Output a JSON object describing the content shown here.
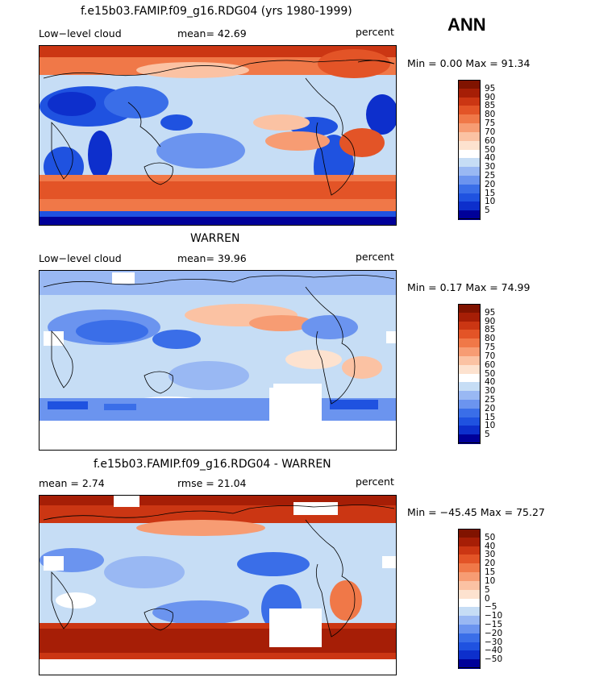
{
  "season": "ANN",
  "panels": [
    {
      "title": "f.e15b03.FAMIP.f09_g16.RDG04 (yrs 1980-1999)",
      "left_label": "Low−level cloud",
      "mean_text": "mean=  42.69",
      "units": "percent",
      "minmax_text": "Min =   0.00 Max =  91.34",
      "levels": [
        "95",
        "90",
        "85",
        "80",
        "75",
        "70",
        "60",
        "50",
        "40",
        "30",
        "25",
        "20",
        "15",
        "10",
        "5"
      ]
    },
    {
      "title": "WARREN",
      "left_label": "Low−level cloud",
      "mean_text": "mean=  39.96",
      "units": "percent",
      "minmax_text": "Min =   0.17 Max =  74.99",
      "levels": [
        "95",
        "90",
        "85",
        "80",
        "75",
        "70",
        "60",
        "50",
        "40",
        "30",
        "25",
        "20",
        "15",
        "10",
        "5"
      ]
    },
    {
      "title": "f.e15b03.FAMIP.f09_g16.RDG04 - WARREN",
      "left_label": "mean =    2.74",
      "mean_text": "rmse =  21.04",
      "units": "percent",
      "minmax_text": "Min = −45.45 Max =  75.27",
      "levels": [
        "50",
        "40",
        "30",
        "20",
        "15",
        "10",
        "5",
        "0",
        "−5",
        "−10",
        "−15",
        "−20",
        "−30",
        "−40",
        "−50"
      ]
    }
  ],
  "colorbar_colors": [
    "#000099",
    "#0d2fcc",
    "#1f52e0",
    "#3a6ee8",
    "#6b94ef",
    "#99b8f3",
    "#c6ddf5",
    "#ffffff",
    "#fde2cf",
    "#fbc2a3",
    "#f79c73",
    "#f07848",
    "#e35427",
    "#cb3613",
    "#a61e06",
    "#801300"
  ],
  "chart_data": [
    {
      "type": "heatmap",
      "title": "f.e15b03.FAMIP.f09_g16.RDG04 (yrs 1980-1999)",
      "variable": "Low−level cloud",
      "units": "percent",
      "mean": 42.69,
      "min": 0.0,
      "max": 91.34,
      "contour_levels": [
        5,
        10,
        15,
        20,
        25,
        30,
        40,
        50,
        60,
        70,
        75,
        80,
        85,
        90,
        95
      ],
      "season": "ANN"
    },
    {
      "type": "heatmap",
      "title": "WARREN",
      "variable": "Low−level cloud",
      "units": "percent",
      "mean": 39.96,
      "min": 0.17,
      "max": 74.99,
      "contour_levels": [
        5,
        10,
        15,
        20,
        25,
        30,
        40,
        50,
        60,
        70,
        75,
        80,
        85,
        90,
        95
      ]
    },
    {
      "type": "heatmap",
      "title": "f.e15b03.FAMIP.f09_g16.RDG04 - WARREN",
      "units": "percent",
      "mean": 2.74,
      "rmse": 21.04,
      "min": -45.45,
      "max": 75.27,
      "contour_levels": [
        -50,
        -40,
        -30,
        -20,
        -15,
        -10,
        -5,
        0,
        5,
        10,
        15,
        20,
        30,
        40,
        50
      ]
    }
  ]
}
